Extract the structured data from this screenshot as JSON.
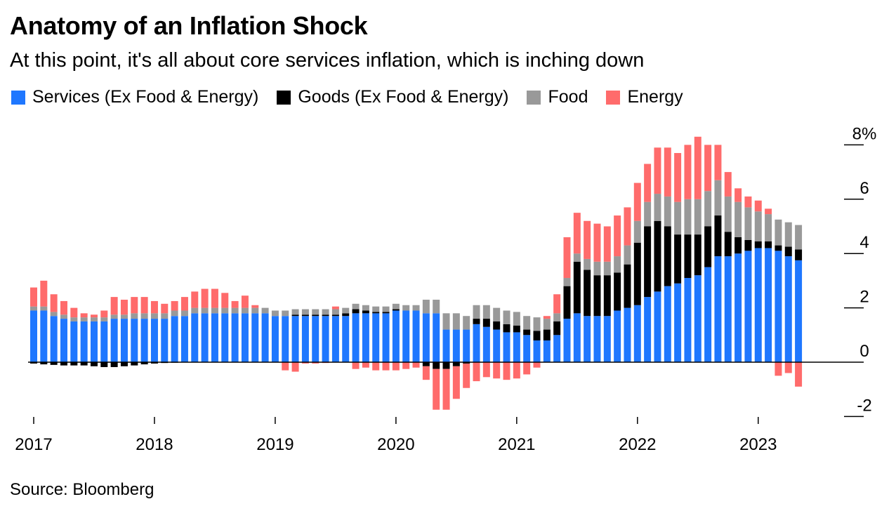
{
  "title": "Anatomy of an Inflation Shock",
  "subtitle": "At this point, it's all about core services inflation, which is inching down",
  "source": "Source: Bloomberg",
  "chart_data": {
    "type": "bar",
    "stacked": true,
    "x_tick_labels": [
      "2017",
      "2018",
      "2019",
      "2020",
      "2021",
      "2022",
      "2023"
    ],
    "y_tick_labels": [
      "8%",
      "6",
      "4",
      "2",
      "0",
      "-2"
    ],
    "y_ticks": [
      8,
      6,
      4,
      2,
      0,
      -2
    ],
    "ylim": [
      -2,
      9
    ],
    "start": "2017-01",
    "series": [
      {
        "name": "Services (Ex Food & Energy)",
        "color": "#1f77ff",
        "values": [
          1.9,
          1.9,
          1.7,
          1.6,
          1.5,
          1.5,
          1.5,
          1.5,
          1.6,
          1.6,
          1.6,
          1.6,
          1.6,
          1.6,
          1.7,
          1.7,
          1.8,
          1.8,
          1.8,
          1.8,
          1.8,
          1.8,
          1.8,
          1.8,
          1.7,
          1.7,
          1.7,
          1.7,
          1.7,
          1.7,
          1.7,
          1.7,
          1.8,
          1.8,
          1.8,
          1.8,
          1.9,
          1.9,
          1.9,
          1.8,
          1.8,
          1.2,
          1.2,
          1.2,
          1.4,
          1.3,
          1.2,
          1.1,
          1.1,
          1.0,
          0.8,
          0.8,
          1.0,
          1.6,
          1.8,
          1.7,
          1.7,
          1.7,
          1.9,
          2.0,
          2.1,
          2.4,
          2.6,
          2.8,
          2.9,
          3.1,
          3.2,
          3.5,
          3.9,
          3.9,
          4.0,
          4.1,
          4.2,
          4.2,
          4.1,
          3.9,
          3.75
        ]
      },
      {
        "name": "Goods (Ex Food & Energy)",
        "color": "#000000",
        "values": [
          -0.05,
          -0.08,
          -0.1,
          -0.12,
          -0.12,
          -0.12,
          -0.15,
          -0.18,
          -0.18,
          -0.15,
          -0.12,
          -0.08,
          -0.05,
          -0.03,
          -0.02,
          -0.01,
          0,
          0,
          0,
          0,
          0,
          0,
          0,
          0,
          0,
          0,
          0.05,
          0.05,
          0.05,
          0.05,
          0.05,
          0.1,
          0.15,
          0.1,
          0.05,
          0.05,
          0.05,
          0,
          0,
          -0.15,
          -0.25,
          -0.25,
          -0.15,
          -0.05,
          0.2,
          0.3,
          0.3,
          0.3,
          0.25,
          0.2,
          0.35,
          0.4,
          0.5,
          1.2,
          1.9,
          1.7,
          1.5,
          1.5,
          1.4,
          1.6,
          2.3,
          2.6,
          2.6,
          2.2,
          1.8,
          1.6,
          1.5,
          1.5,
          1.5,
          0.9,
          0.6,
          0.4,
          0.25,
          0.25,
          0.2,
          0.35,
          0.4
        ]
      },
      {
        "name": "Food",
        "color": "#999999",
        "values": [
          0.15,
          0.15,
          0.15,
          0.15,
          0.15,
          0.15,
          0.15,
          0.15,
          0.15,
          0.15,
          0.2,
          0.2,
          0.2,
          0.2,
          0.2,
          0.2,
          0.2,
          0.2,
          0.2,
          0.2,
          0.2,
          0.2,
          0.2,
          0.2,
          0.2,
          0.2,
          0.2,
          0.2,
          0.2,
          0.2,
          0.2,
          0.2,
          0.2,
          0.2,
          0.2,
          0.2,
          0.2,
          0.2,
          0.2,
          0.5,
          0.5,
          0.6,
          0.6,
          0.5,
          0.5,
          0.5,
          0.5,
          0.5,
          0.5,
          0.5,
          0.5,
          0.4,
          0.3,
          0.3,
          0.3,
          0.4,
          0.5,
          0.5,
          0.6,
          0.7,
          0.8,
          0.9,
          1.0,
          1.1,
          1.2,
          1.3,
          1.3,
          1.3,
          1.3,
          1.3,
          1.3,
          1.2,
          1.1,
          1.0,
          0.95,
          0.9,
          0.9
        ]
      },
      {
        "name": "Energy",
        "color": "#ff6b6b",
        "values": [
          0.7,
          0.95,
          0.65,
          0.5,
          0.35,
          0.15,
          0.1,
          0.25,
          0.65,
          0.55,
          0.6,
          0.6,
          0.45,
          0.35,
          0.35,
          0.5,
          0.6,
          0.7,
          0.7,
          0.55,
          0.25,
          0.45,
          0.1,
          0,
          0,
          -0.3,
          -0.35,
          -0.05,
          -0.05,
          -0.03,
          0.1,
          0,
          -0.25,
          -0.2,
          -0.3,
          -0.3,
          -0.3,
          -0.25,
          -0.2,
          -0.5,
          -1.5,
          -1.5,
          -1.2,
          -0.9,
          -0.7,
          -0.55,
          -0.6,
          -0.65,
          -0.6,
          -0.45,
          -0.2,
          0.1,
          0.7,
          1.5,
          1.5,
          1.4,
          1.4,
          1.3,
          1.5,
          1.4,
          1.4,
          1.4,
          1.7,
          1.8,
          1.8,
          2.0,
          2.3,
          1.7,
          1.3,
          0.9,
          0.5,
          0.4,
          0.4,
          0.2,
          -0.5,
          -0.4,
          -0.9
        ]
      }
    ],
    "legend_position": "top-left",
    "grid": false
  }
}
